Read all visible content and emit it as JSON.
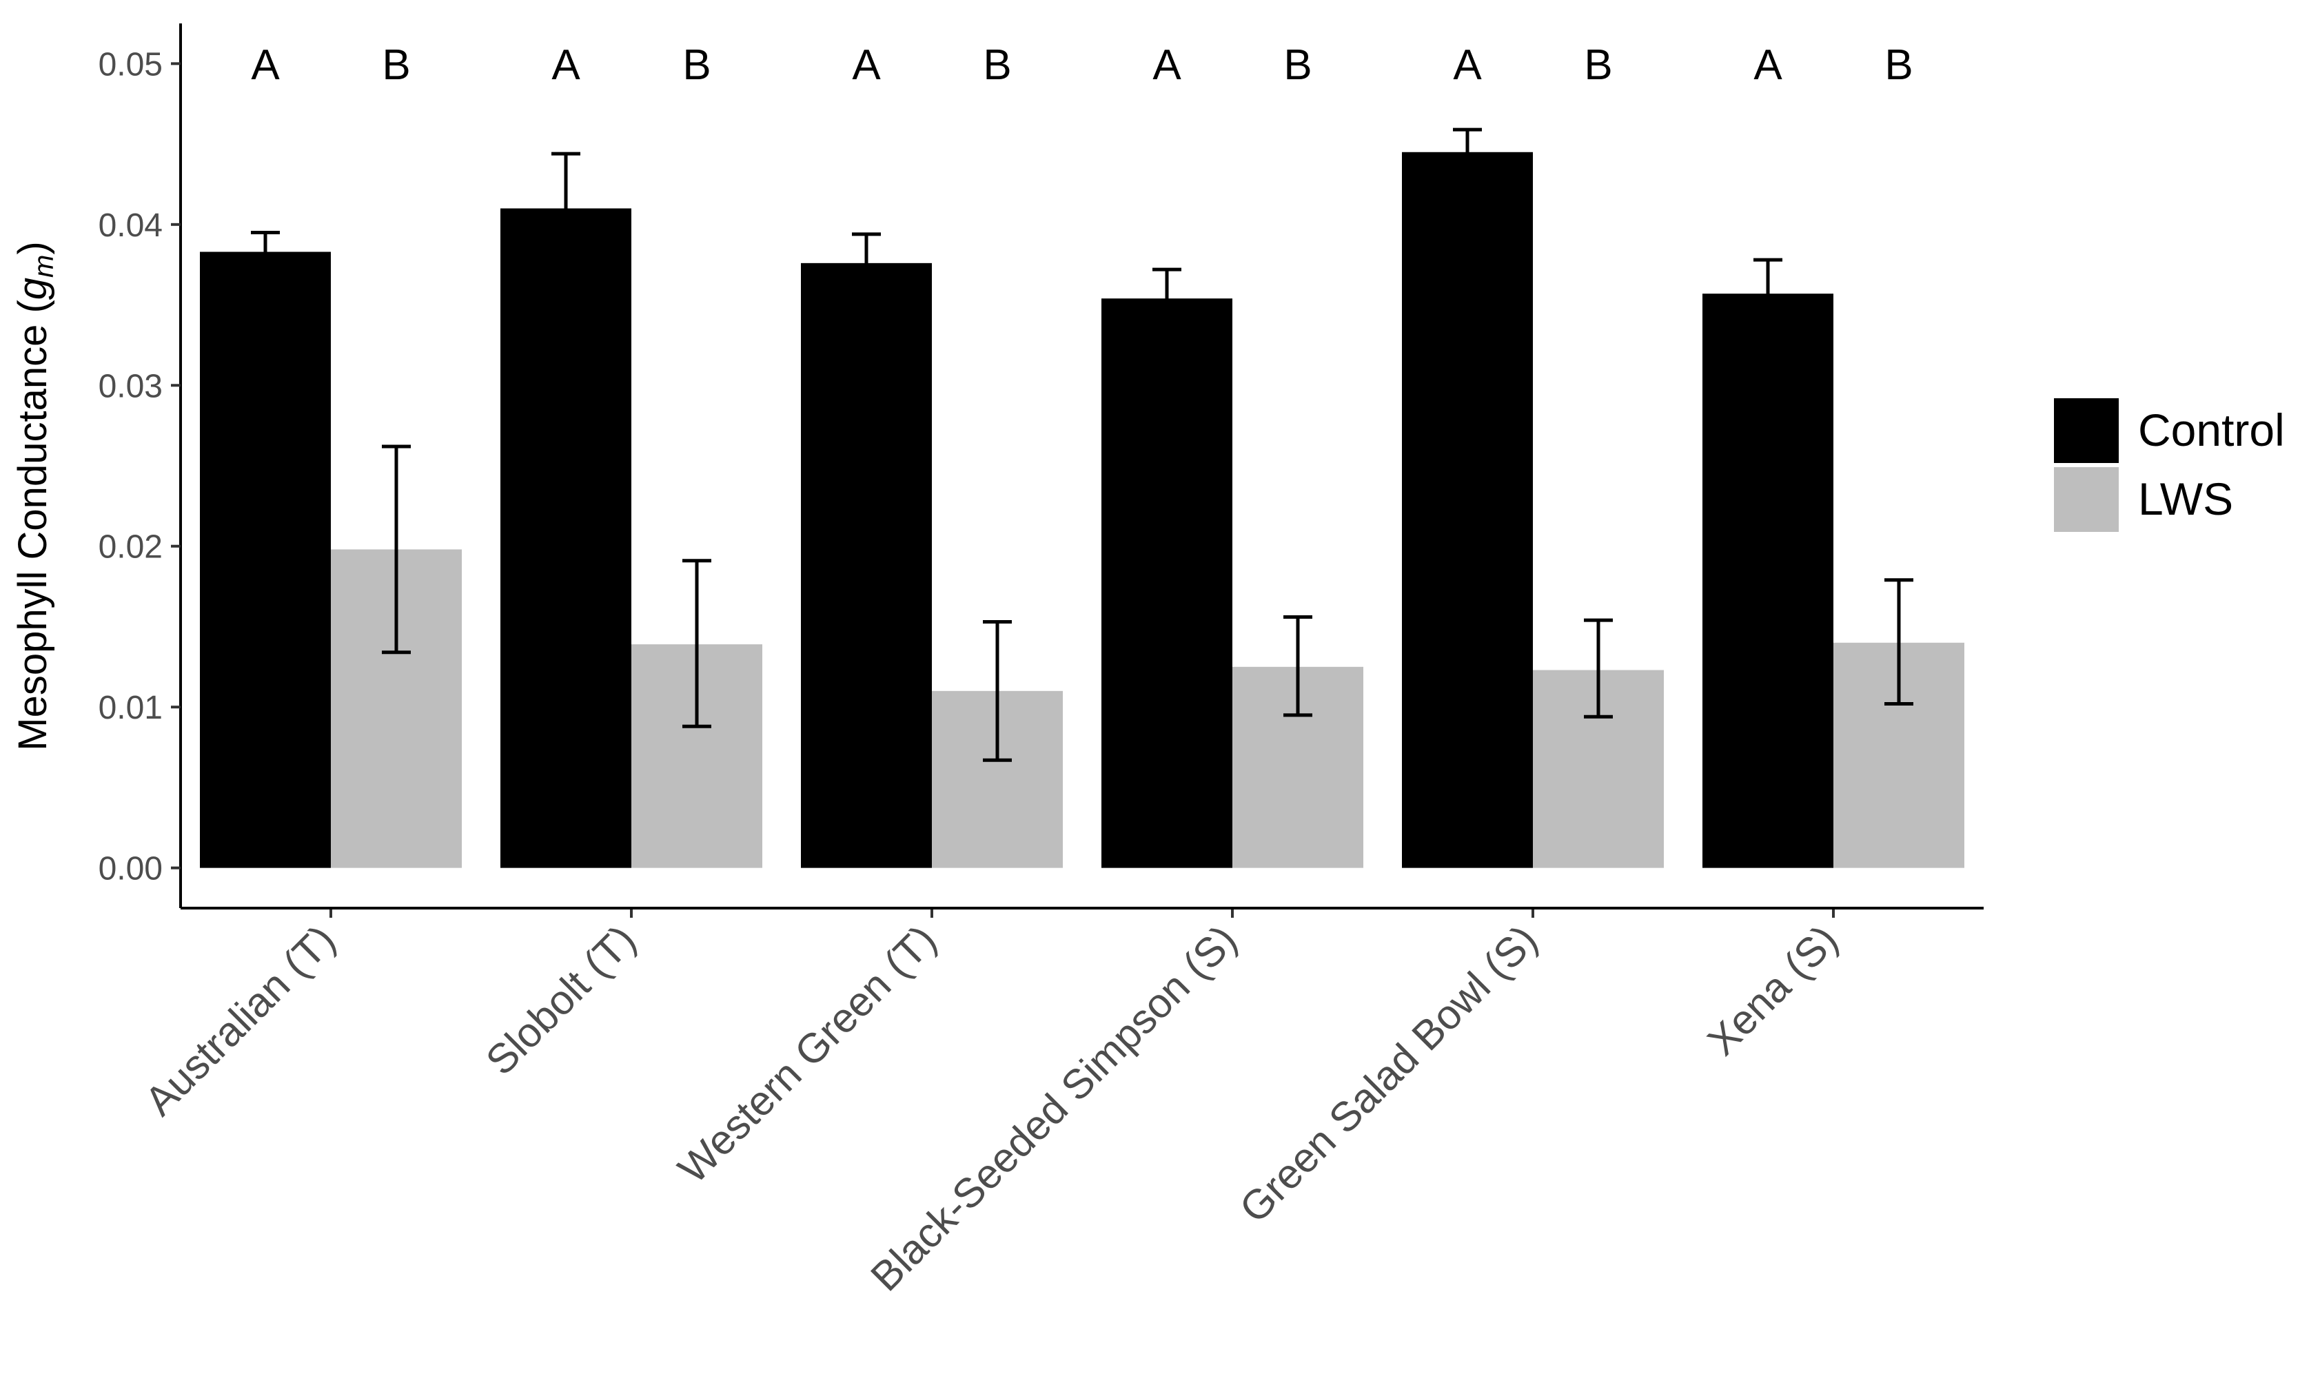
{
  "chart_data": {
    "type": "bar",
    "title": "",
    "xlabel": "",
    "ylabel": "Mesophyll Conductance (",
    "ylabel_symbol": "g",
    "ylabel_subscript": "m",
    "ylabel_close": ")",
    "ylim": [
      -0.0025,
      0.0525
    ],
    "yticks": [
      "0.00",
      "0.01",
      "0.02",
      "0.03",
      "0.04",
      "0.05"
    ],
    "ytick_values": [
      0,
      0.01,
      0.02,
      0.03,
      0.04,
      0.05
    ],
    "categories": [
      "Australian (T)",
      "Slobolt (T)",
      "Western Green (T)",
      "Black-Seeded Simpson (S)",
      "Green Salad Bowl (S)",
      "Xena (S)"
    ],
    "series": [
      {
        "name": "Control",
        "color": "#000000",
        "values": [
          0.0383,
          0.041,
          0.0376,
          0.0354,
          0.0445,
          0.0357
        ],
        "err_low": [
          0.0372,
          0.0377,
          0.0359,
          0.0337,
          0.0433,
          0.0337
        ],
        "err_high": [
          0.0395,
          0.0444,
          0.0394,
          0.0372,
          0.0459,
          0.0378
        ],
        "letters": [
          "A",
          "A",
          "A",
          "A",
          "A",
          "A"
        ]
      },
      {
        "name": "LWS",
        "color": "#bebebe",
        "values": [
          0.0198,
          0.0139,
          0.011,
          0.0125,
          0.0123,
          0.014
        ],
        "err_low": [
          0.0134,
          0.0088,
          0.0067,
          0.0095,
          0.0094,
          0.0102
        ],
        "err_high": [
          0.0262,
          0.0191,
          0.0153,
          0.0156,
          0.0154,
          0.0179
        ],
        "letters": [
          "B",
          "B",
          "B",
          "B",
          "B",
          "B"
        ]
      }
    ],
    "legend": {
      "position": "right"
    },
    "grid": false
  }
}
